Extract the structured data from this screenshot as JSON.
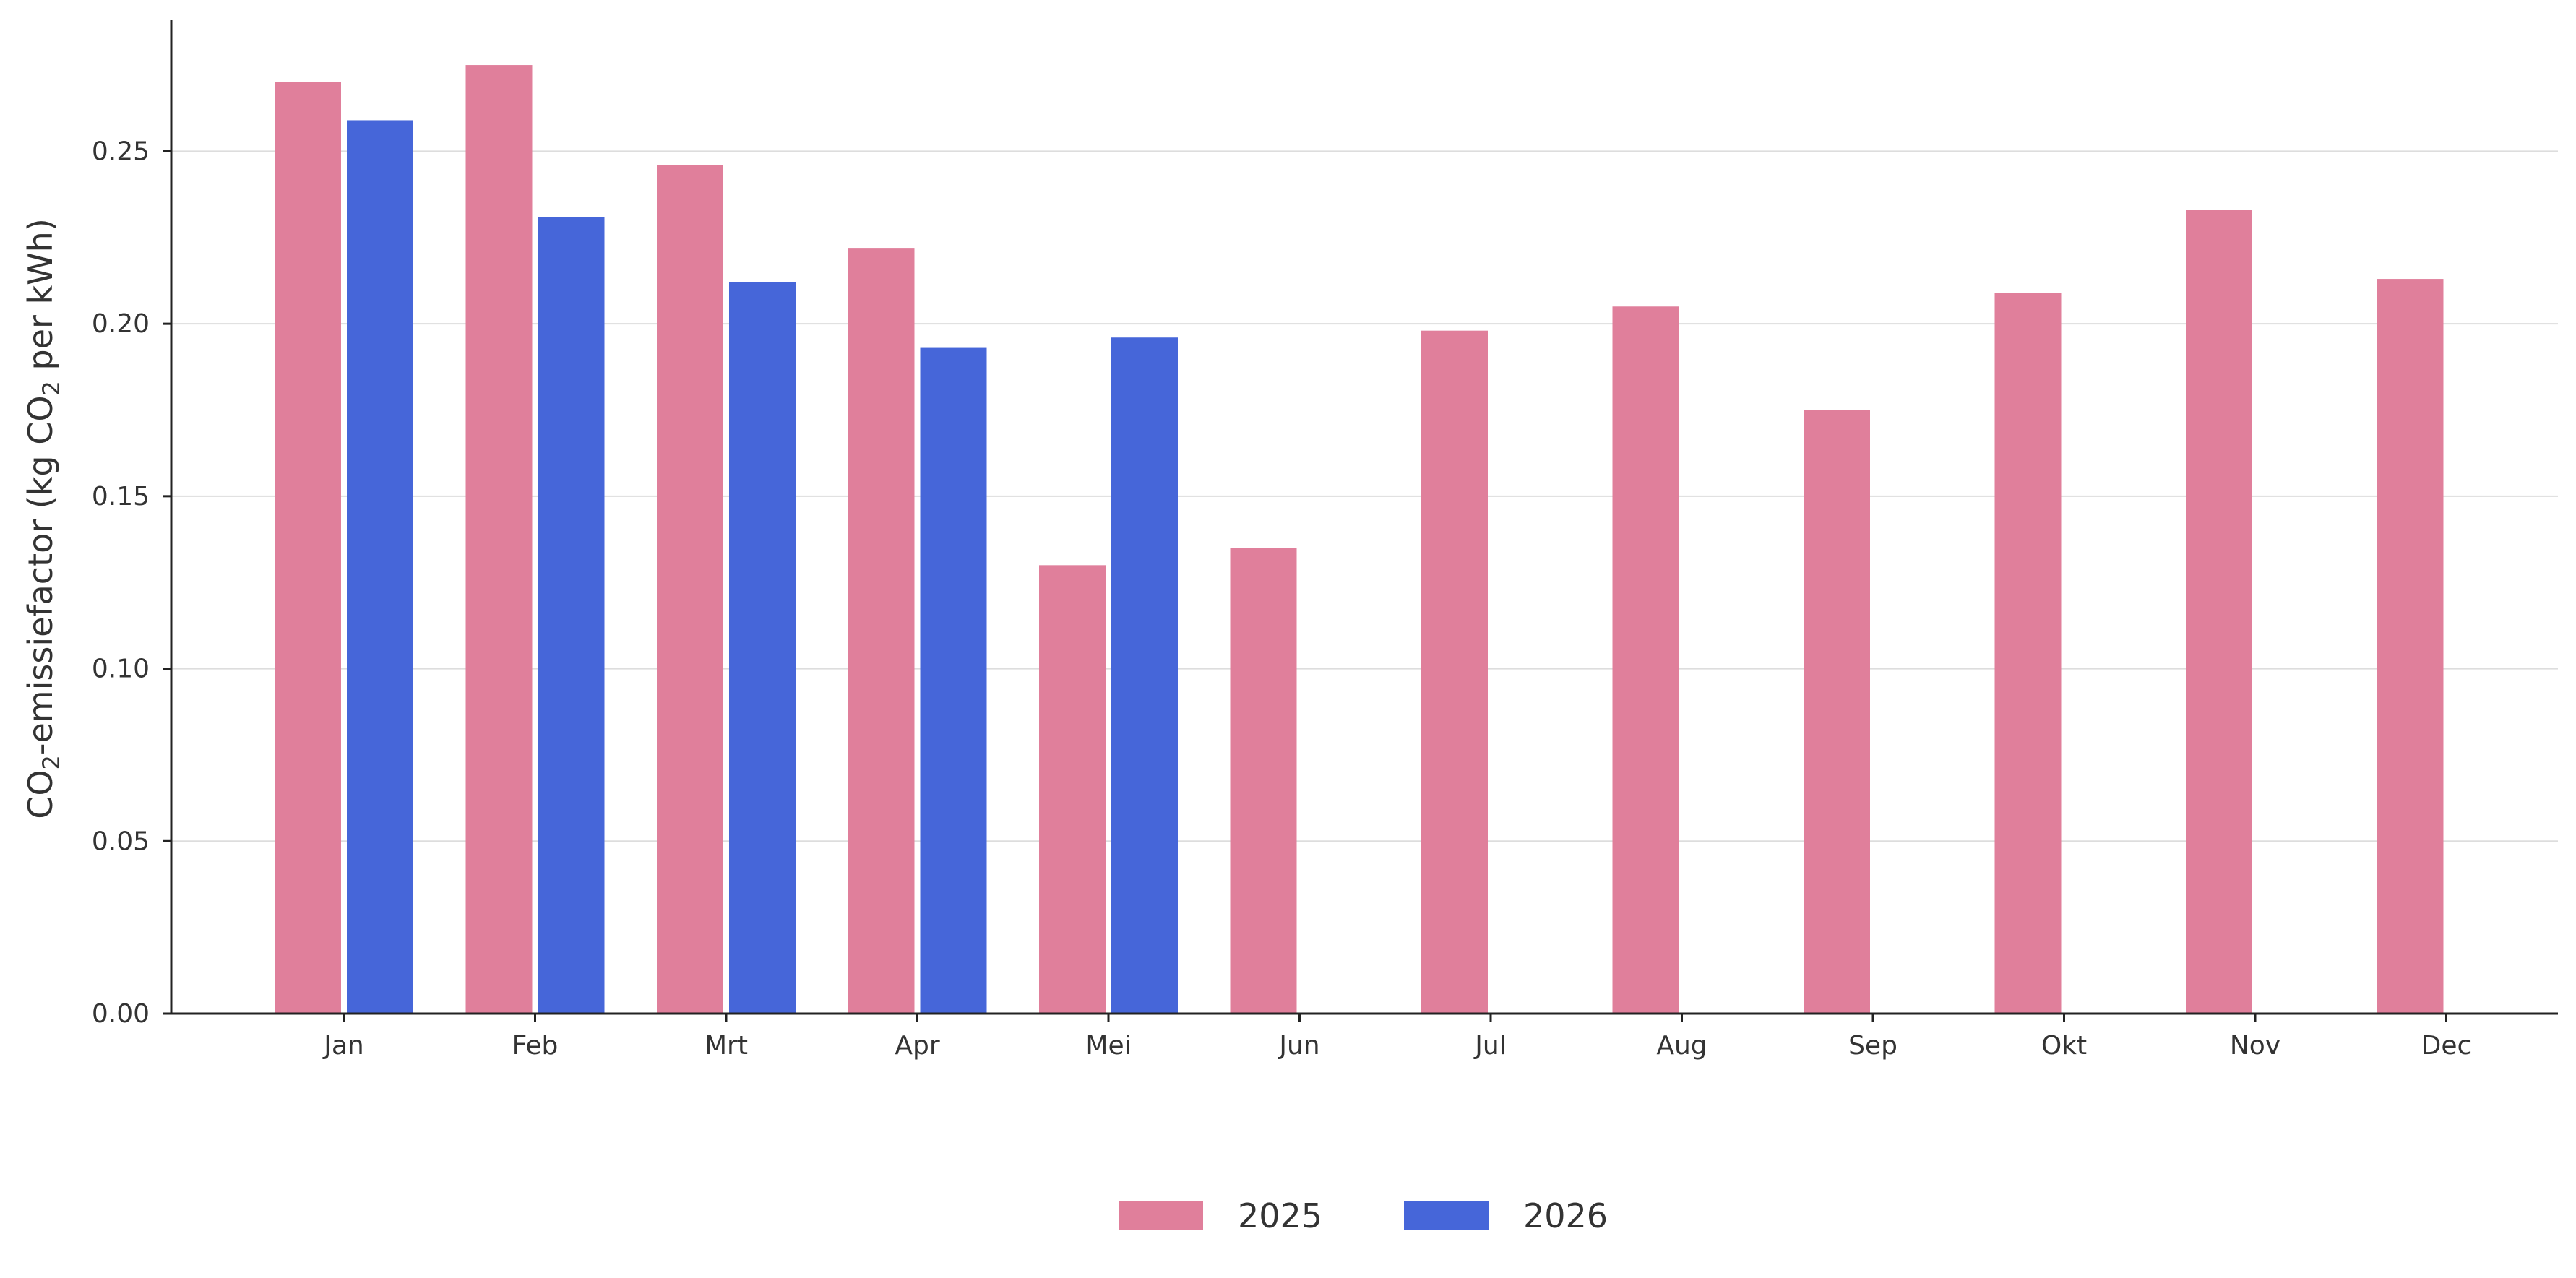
{
  "chart_data": {
    "type": "bar",
    "title": "",
    "xlabel": "",
    "ylabel_main": "CO",
    "ylabel_sub1": "2",
    "ylabel_mid": "-emissiefactor (kg CO",
    "ylabel_sub2": "2",
    "ylabel_end": " per kWh)",
    "categories": [
      "Jan",
      "Feb",
      "Mrt",
      "Apr",
      "Mei",
      "Jun",
      "Jul",
      "Aug",
      "Sep",
      "Okt",
      "Nov",
      "Dec"
    ],
    "series": [
      {
        "name": "2025",
        "color": "#e07f9b",
        "values": [
          0.27,
          0.275,
          0.246,
          0.222,
          0.13,
          0.135,
          0.198,
          0.205,
          0.175,
          0.209,
          0.233,
          0.213
        ]
      },
      {
        "name": "2026",
        "color": "#4666d9",
        "values": [
          0.259,
          0.231,
          0.212,
          0.193,
          0.196,
          null,
          null,
          null,
          null,
          null,
          null,
          null
        ]
      }
    ],
    "ylim": [
      0,
      0.288
    ],
    "yticks": [
      "0.00",
      "0.05",
      "0.10",
      "0.15",
      "0.20",
      "0.25"
    ],
    "grid": true,
    "legend_position": "bottom-center"
  }
}
